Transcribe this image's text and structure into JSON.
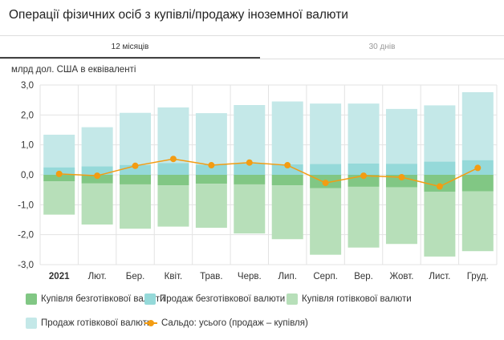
{
  "title": "Операції фізичних осіб з купівлі/продажу іноземної валюти",
  "tabs": [
    {
      "label": "12 місяців",
      "active": true
    },
    {
      "label": "30 днів",
      "active": false
    }
  ],
  "chart_data": {
    "type": "bar",
    "ylabel": "млрд дол. США в еквіваленті",
    "ylim": [
      -3,
      3
    ],
    "yticks": [
      "3,0",
      "2,0",
      "1,0",
      "0,0",
      "-1,0",
      "-2,0",
      "-3,0"
    ],
    "grid": true,
    "legend_placement": "bottom",
    "categories": [
      "2021",
      "Лют.",
      "Бер.",
      "Квіт.",
      "Трав.",
      "Черв.",
      "Лип.",
      "Серп.",
      "Вер.",
      "Жовт.",
      "Лист.",
      "Груд."
    ],
    "series": [
      {
        "name": "Купівля безготівкової валюти",
        "color": "#81c784",
        "values": [
          -0.22,
          -0.29,
          -0.32,
          -0.35,
          -0.3,
          -0.32,
          -0.35,
          -0.45,
          -0.4,
          -0.42,
          -0.57,
          -0.55
        ]
      },
      {
        "name": "Продаж безготівкової валюти",
        "color": "#95d9d9",
        "values": [
          0.25,
          0.28,
          0.33,
          0.39,
          0.34,
          0.38,
          0.35,
          0.36,
          0.38,
          0.37,
          0.44,
          0.49
        ]
      },
      {
        "name": "Купівля готівкової валюти",
        "color": "#b7dfb9",
        "values": [
          -1.11,
          -1.37,
          -1.48,
          -1.38,
          -1.47,
          -1.64,
          -1.8,
          -2.22,
          -2.03,
          -1.89,
          -2.16,
          -2.0
        ]
      },
      {
        "name": "Продаж готівкової валюти",
        "color": "#c4e8e8",
        "values": [
          1.09,
          1.31,
          1.74,
          1.86,
          1.72,
          1.95,
          2.1,
          2.02,
          2.0,
          1.83,
          1.88,
          2.27
        ]
      },
      {
        "name": "Сальдо: усього (продаж – купівля)",
        "color": "#f39c12",
        "type": "line",
        "values": [
          0.03,
          -0.03,
          0.3,
          0.53,
          0.32,
          0.41,
          0.32,
          -0.27,
          -0.03,
          -0.08,
          -0.39,
          0.23
        ]
      }
    ]
  }
}
